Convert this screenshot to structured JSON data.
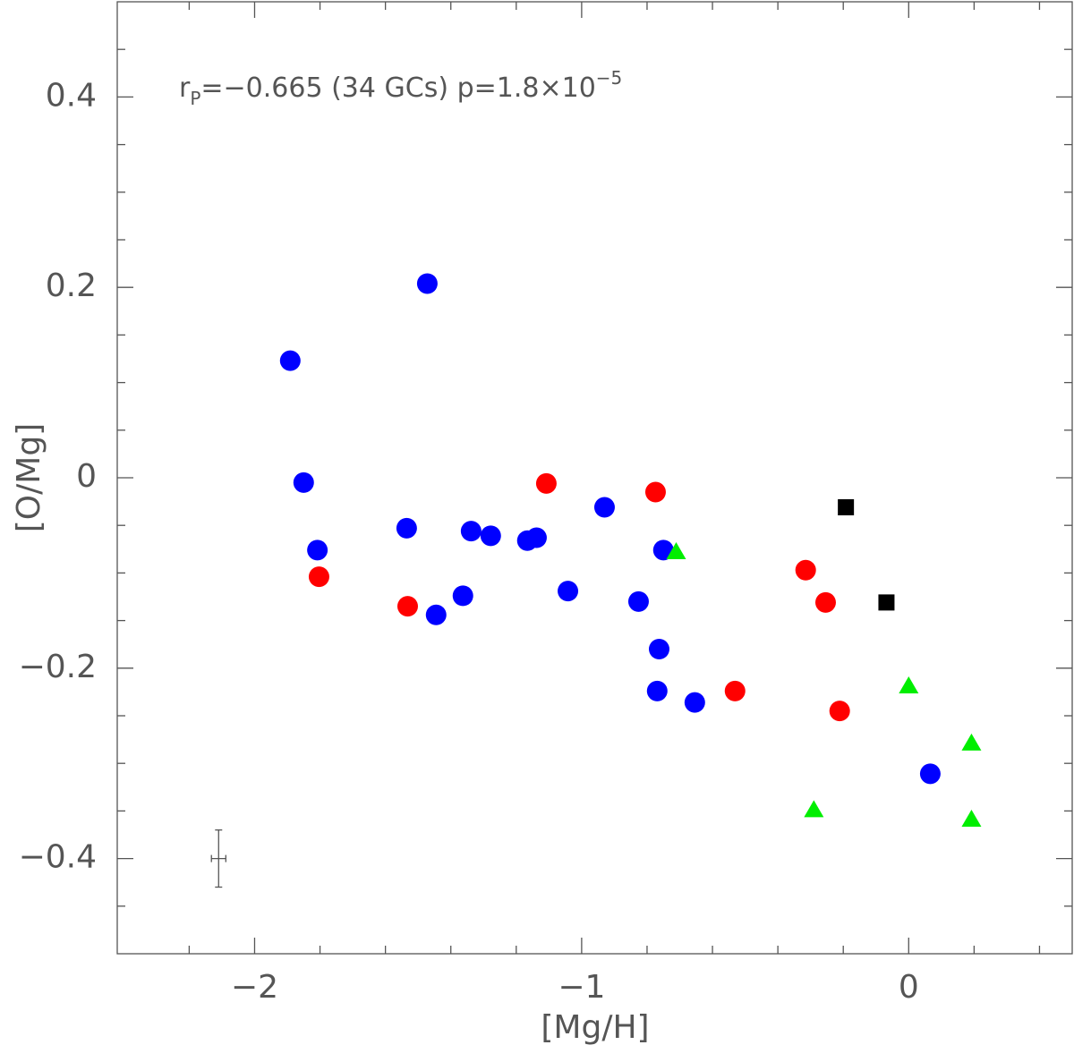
{
  "chart_data": {
    "type": "scatter",
    "xlabel": "[Mg/H]",
    "ylabel": "[O/Mg]",
    "annotation": {
      "r": "r",
      "sub": "P",
      "main": "=−0.665 (34 GCs) p=1.8×10",
      "sup": "−5"
    },
    "xlim": [
      -2.42,
      0.5
    ],
    "ylim": [
      -0.5,
      0.5
    ],
    "xticks": [
      {
        "value": -2,
        "label": "−2"
      },
      {
        "value": -1,
        "label": "−1"
      },
      0
    ],
    "yticks": [
      {
        "value": -0.4,
        "label": "−0.4"
      },
      {
        "value": -0.2,
        "label": "−0.2"
      },
      0,
      0.2,
      0.4
    ],
    "xminorticks": [
      -2.2,
      -1.8,
      -1.6,
      -1.4,
      -1.2,
      -0.8,
      -0.6,
      -0.4,
      -0.2,
      0.2,
      0.4
    ],
    "yminorticks": [
      -0.45,
      -0.35,
      -0.3,
      -0.25,
      -0.15,
      -0.1,
      -0.05,
      0.05,
      0.1,
      0.15,
      0.25,
      0.3,
      0.35,
      0.45
    ],
    "series": [
      {
        "color": "#0000ff",
        "marker": "circle",
        "x": [
          -1.891,
          -1.472,
          -1.85,
          -1.808,
          -1.535,
          -1.445,
          -1.363,
          -1.338,
          -1.278,
          -1.166,
          -1.138,
          -1.042,
          -0.93,
          -0.826,
          -0.75,
          -0.763,
          -0.769,
          -0.654,
          0.066
        ],
        "values": [
          0.123,
          0.204,
          -0.005,
          -0.076,
          -0.053,
          -0.144,
          -0.124,
          -0.056,
          -0.061,
          -0.066,
          -0.063,
          -0.119,
          -0.031,
          -0.13,
          -0.076,
          -0.18,
          -0.224,
          -0.236,
          -0.311
        ]
      },
      {
        "color": "#ff0000",
        "marker": "circle",
        "x": [
          -1.803,
          -1.532,
          -1.108,
          -0.774,
          -0.531,
          -0.315,
          -0.254,
          -0.211
        ],
        "values": [
          -0.104,
          -0.135,
          -0.006,
          -0.015,
          -0.224,
          -0.097,
          -0.131,
          -0.245
        ]
      },
      {
        "color": "#000000",
        "marker": "square",
        "x": [
          -0.192,
          -0.068
        ],
        "values": [
          -0.031,
          -0.131
        ]
      },
      {
        "color": "#00ee00",
        "marker": "triangle",
        "x": [
          -0.711,
          0,
          -0.29,
          0.192,
          0.192
        ],
        "values": [
          -0.078,
          -0.219,
          -0.349,
          -0.279,
          -0.359
        ]
      }
    ],
    "error_bar": {
      "x": -2.11,
      "y": -0.4,
      "xerr": 0.022,
      "yerr": 0.03
    }
  }
}
